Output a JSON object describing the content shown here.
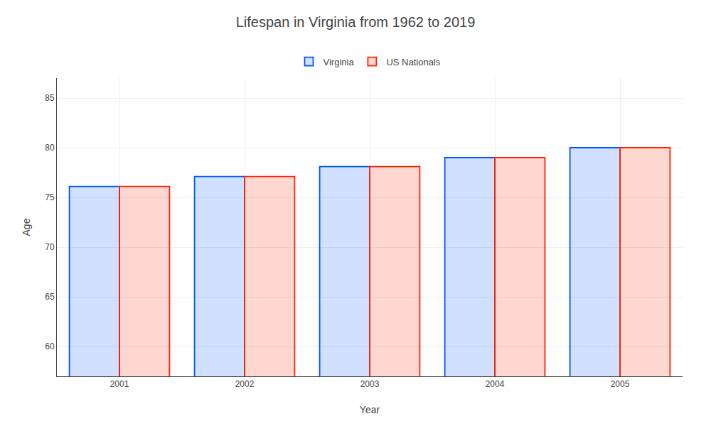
{
  "chart_data": {
    "type": "bar",
    "title": "Lifespan in Virginia from 1962 to 2019",
    "x_label": "Year",
    "y_label": "Age",
    "categories": [
      "2001",
      "2002",
      "2003",
      "2004",
      "2005"
    ],
    "series": [
      {
        "name": "Virginia",
        "color": "#0055ff",
        "values": [
          76.1,
          77.1,
          78.1,
          79.0,
          80.0
        ]
      },
      {
        "name": "US Nationals",
        "color": "#ff2200",
        "values": [
          76.1,
          77.1,
          78.1,
          79.0,
          80.0
        ]
      }
    ],
    "ylim": [
      57,
      87
    ],
    "yticks": [
      60,
      65,
      70,
      75,
      80,
      85
    ],
    "grid": true,
    "legend": "upper center"
  }
}
